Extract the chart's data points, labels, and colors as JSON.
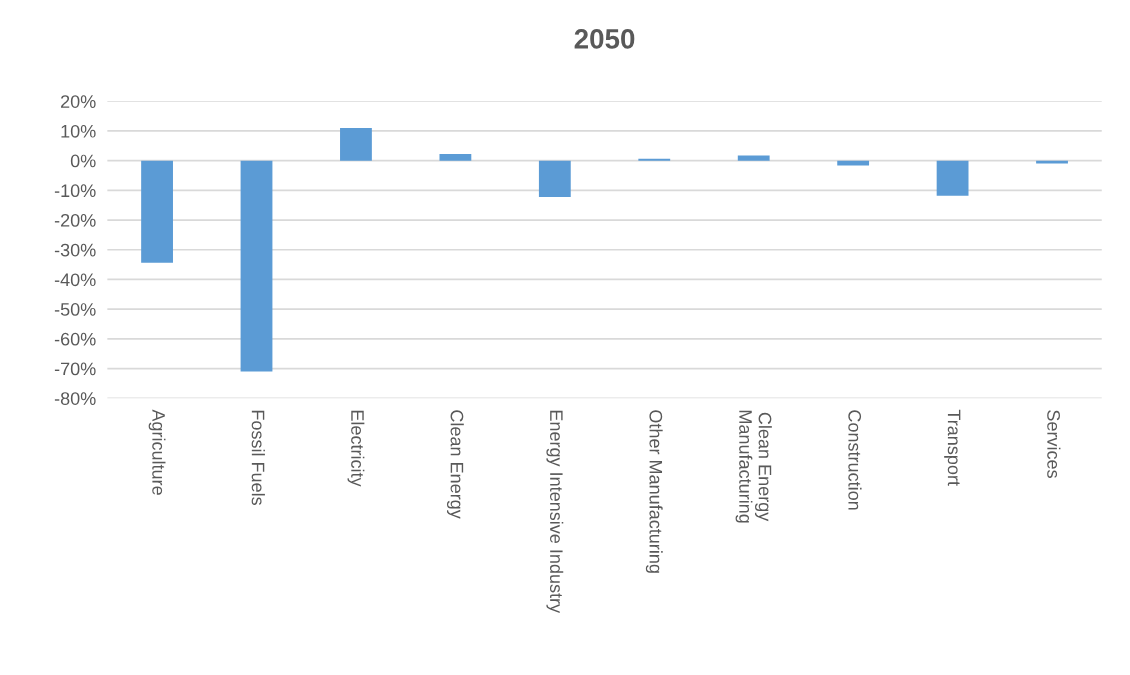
{
  "chart_data": {
    "type": "bar",
    "title": "2050",
    "categories": [
      "Agriculture",
      "Fossil Fuels",
      "Electricity",
      "Clean Energy",
      "Energy Intensive Industry",
      "Other Manufacturing",
      "Clean Energy\nManufacturing",
      "Construction",
      "Transport",
      "Services"
    ],
    "values": [
      -34.4,
      -71,
      11,
      2.2,
      -12.2,
      0.6,
      1.7,
      -1.6,
      -11.8,
      -1
    ],
    "color": "#5b9bd5",
    "ylim": [
      -80,
      20
    ],
    "yticks": [
      {
        "value": -80,
        "label": "-80%"
      },
      {
        "value": -70,
        "label": "-70%"
      },
      {
        "value": -60,
        "label": "-60%"
      },
      {
        "value": -50,
        "label": "-50%"
      },
      {
        "value": -40,
        "label": "-40%"
      },
      {
        "value": -30,
        "label": "-30%"
      },
      {
        "value": -20,
        "label": "-20%"
      },
      {
        "value": -10,
        "label": "-10%"
      },
      {
        "value": 0,
        "label": "0%"
      },
      {
        "value": 10,
        "label": "10%"
      },
      {
        "value": 20,
        "label": "20%"
      }
    ],
    "grid": "y",
    "legend": false
  }
}
